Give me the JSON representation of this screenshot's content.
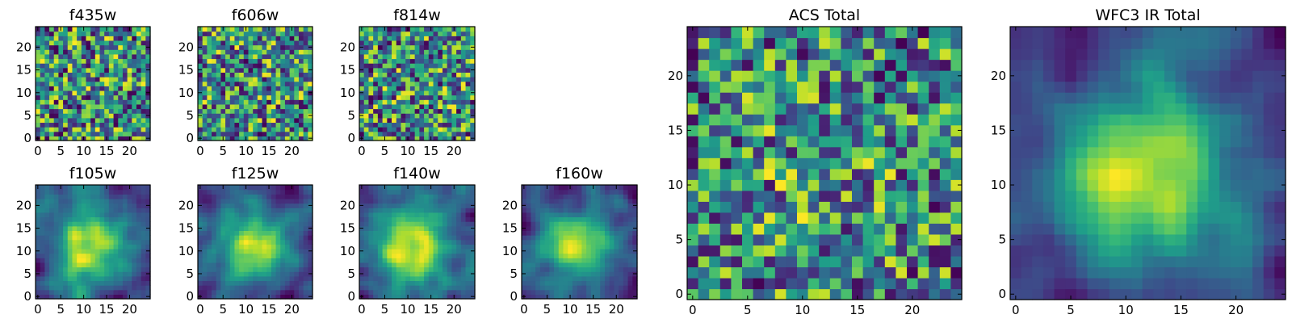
{
  "chart_data": [
    {
      "type": "heatmap",
      "title": "f435w",
      "xticks": [
        "0",
        "5",
        "10",
        "15",
        "20"
      ],
      "yticks": [
        "0",
        "5",
        "10",
        "15",
        "20"
      ],
      "xlim": [
        -0.5,
        24.5
      ],
      "ylim": [
        -0.5,
        24.5
      ],
      "grid_size": [
        25,
        25
      ],
      "colormap": "viridis",
      "pattern": "noise",
      "center_strength": 0.0
    },
    {
      "type": "heatmap",
      "title": "f606w",
      "xticks": [
        "0",
        "5",
        "10",
        "15",
        "20"
      ],
      "yticks": [
        "0",
        "5",
        "10",
        "15",
        "20"
      ],
      "xlim": [
        -0.5,
        24.5
      ],
      "ylim": [
        -0.5,
        24.5
      ],
      "grid_size": [
        25,
        25
      ],
      "colormap": "viridis",
      "pattern": "noise",
      "center_strength": 0.0
    },
    {
      "type": "heatmap",
      "title": "f814w",
      "xticks": [
        "0",
        "5",
        "10",
        "15",
        "20"
      ],
      "yticks": [
        "0",
        "5",
        "10",
        "15",
        "20"
      ],
      "xlim": [
        -0.5,
        24.5
      ],
      "ylim": [
        -0.5,
        24.5
      ],
      "grid_size": [
        25,
        25
      ],
      "colormap": "viridis",
      "pattern": "noise",
      "center_strength": 0.05
    },
    {
      "type": "heatmap",
      "title": "f105w",
      "xticks": [
        "0",
        "5",
        "10",
        "15",
        "20"
      ],
      "yticks": [
        "0",
        "5",
        "10",
        "15",
        "20"
      ],
      "xlim": [
        -0.5,
        24.5
      ],
      "ylim": [
        -0.5,
        24.5
      ],
      "grid_size": [
        25,
        25
      ],
      "colormap": "viridis",
      "pattern": "smooth-source",
      "center_strength": 0.55
    },
    {
      "type": "heatmap",
      "title": "f125w",
      "xticks": [
        "0",
        "5",
        "10",
        "15",
        "20"
      ],
      "yticks": [
        "0",
        "5",
        "10",
        "15",
        "20"
      ],
      "xlim": [
        -0.5,
        24.5
      ],
      "ylim": [
        -0.5,
        24.5
      ],
      "grid_size": [
        25,
        25
      ],
      "colormap": "viridis",
      "pattern": "smooth-source",
      "center_strength": 0.6
    },
    {
      "type": "heatmap",
      "title": "f140w",
      "xticks": [
        "0",
        "5",
        "10",
        "15",
        "20"
      ],
      "yticks": [
        "0",
        "5",
        "10",
        "15",
        "20"
      ],
      "xlim": [
        -0.5,
        24.5
      ],
      "ylim": [
        -0.5,
        24.5
      ],
      "grid_size": [
        25,
        25
      ],
      "colormap": "viridis",
      "pattern": "smooth-source",
      "center_strength": 0.55
    },
    {
      "type": "heatmap",
      "title": "f160w",
      "xticks": [
        "0",
        "5",
        "10",
        "15",
        "20"
      ],
      "yticks": [
        "0",
        "5",
        "10",
        "15",
        "20"
      ],
      "xlim": [
        -0.5,
        24.5
      ],
      "ylim": [
        -0.5,
        24.5
      ],
      "grid_size": [
        25,
        25
      ],
      "colormap": "viridis",
      "pattern": "smooth-source",
      "center_strength": 0.6
    },
    {
      "type": "heatmap",
      "title": "ACS Total",
      "xticks": [
        "0",
        "5",
        "10",
        "15",
        "20"
      ],
      "yticks": [
        "0",
        "5",
        "10",
        "15",
        "20"
      ],
      "xlim": [
        -0.5,
        24.5
      ],
      "ylim": [
        -0.5,
        24.5
      ],
      "grid_size": [
        25,
        25
      ],
      "colormap": "viridis",
      "pattern": "noise",
      "center_strength": 0.1
    },
    {
      "type": "heatmap",
      "title": "WFC3 IR Total",
      "xticks": [
        "0",
        "5",
        "10",
        "15",
        "20"
      ],
      "yticks": [
        "0",
        "5",
        "10",
        "15",
        "20"
      ],
      "xlim": [
        -0.5,
        24.5
      ],
      "ylim": [
        -0.5,
        24.5
      ],
      "grid_size": [
        25,
        25
      ],
      "colormap": "viridis",
      "pattern": "smooth-source",
      "center_strength": 0.75
    }
  ]
}
